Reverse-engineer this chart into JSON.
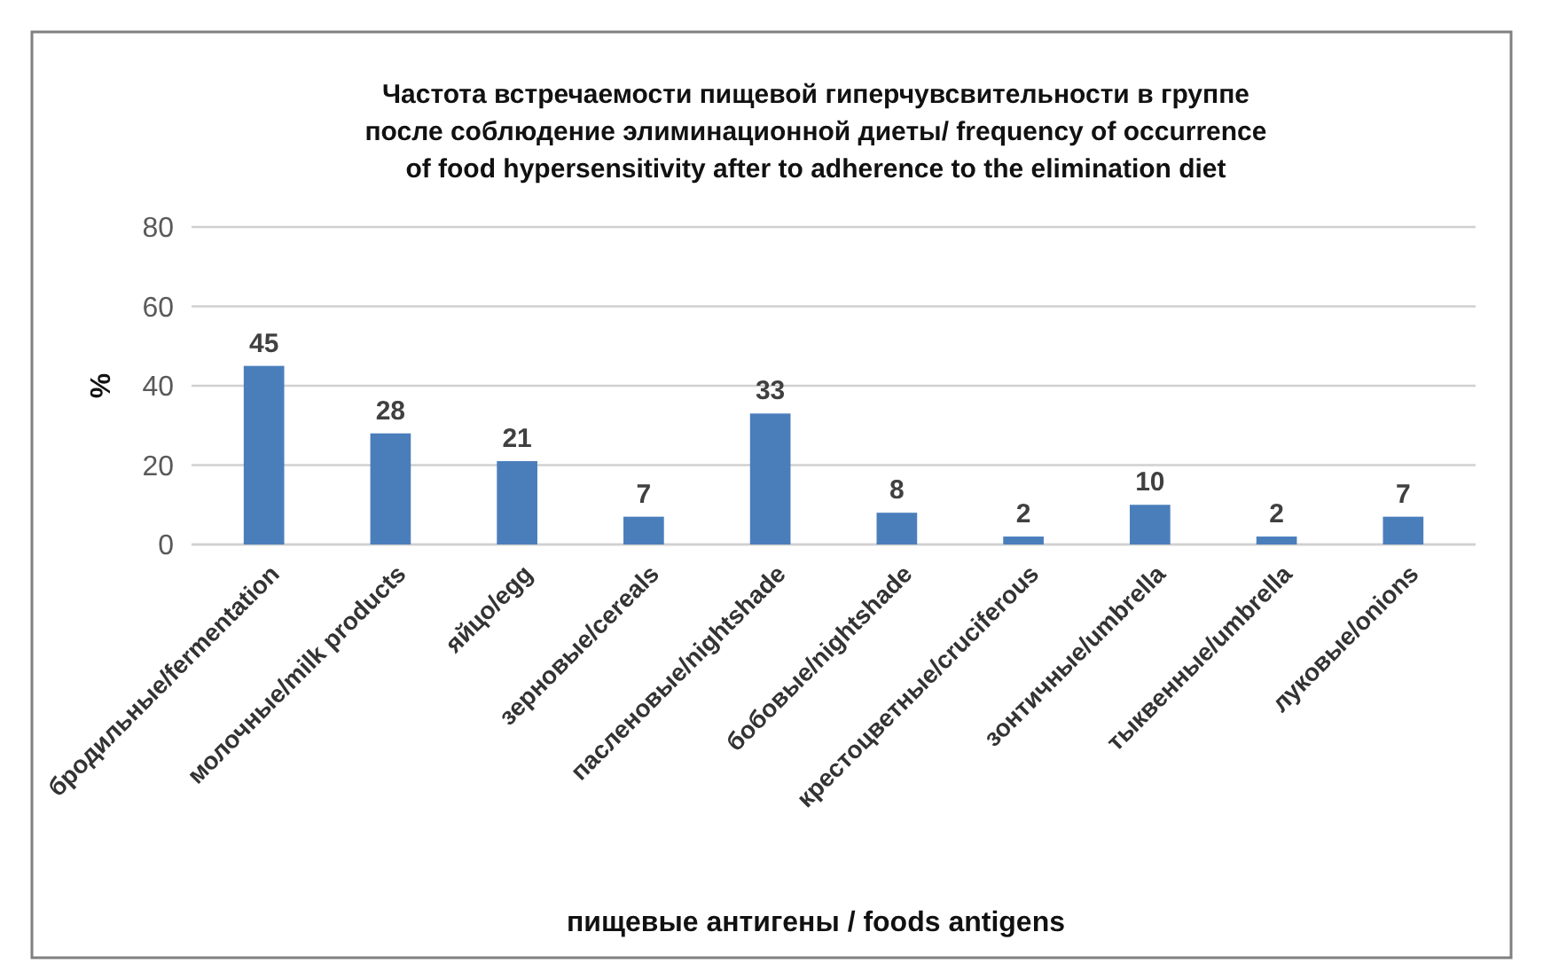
{
  "chart_data": {
    "type": "bar",
    "title": "Частота встречаемости пищевой гиперчувсвительности в группе\nпосле соблюдение элиминационной диеты/ frequency of occurrence\nof food hypersensitivity after to adherence to the elimination diet",
    "xlabel": "пищевые антигены / foods antigens",
    "ylabel": "%",
    "categories": [
      "бродильные/fermentation",
      "молочные/milk products",
      "яйцо/egg",
      "зерновые/cereals",
      "пасленовые/nightshade",
      "бобовые/nightshade",
      "крестоцветные/cruciferous",
      "зонтичные/umbrella",
      "тыквенные/umbrella",
      "луковые/onions"
    ],
    "values": [
      45,
      28,
      21,
      7,
      33,
      8,
      2,
      10,
      2,
      7
    ],
    "color": "#4a7ebb",
    "ylim": [
      0,
      80
    ],
    "yticks": [
      0,
      20,
      40,
      60,
      80
    ],
    "grid": "y",
    "data_labels": true
  }
}
